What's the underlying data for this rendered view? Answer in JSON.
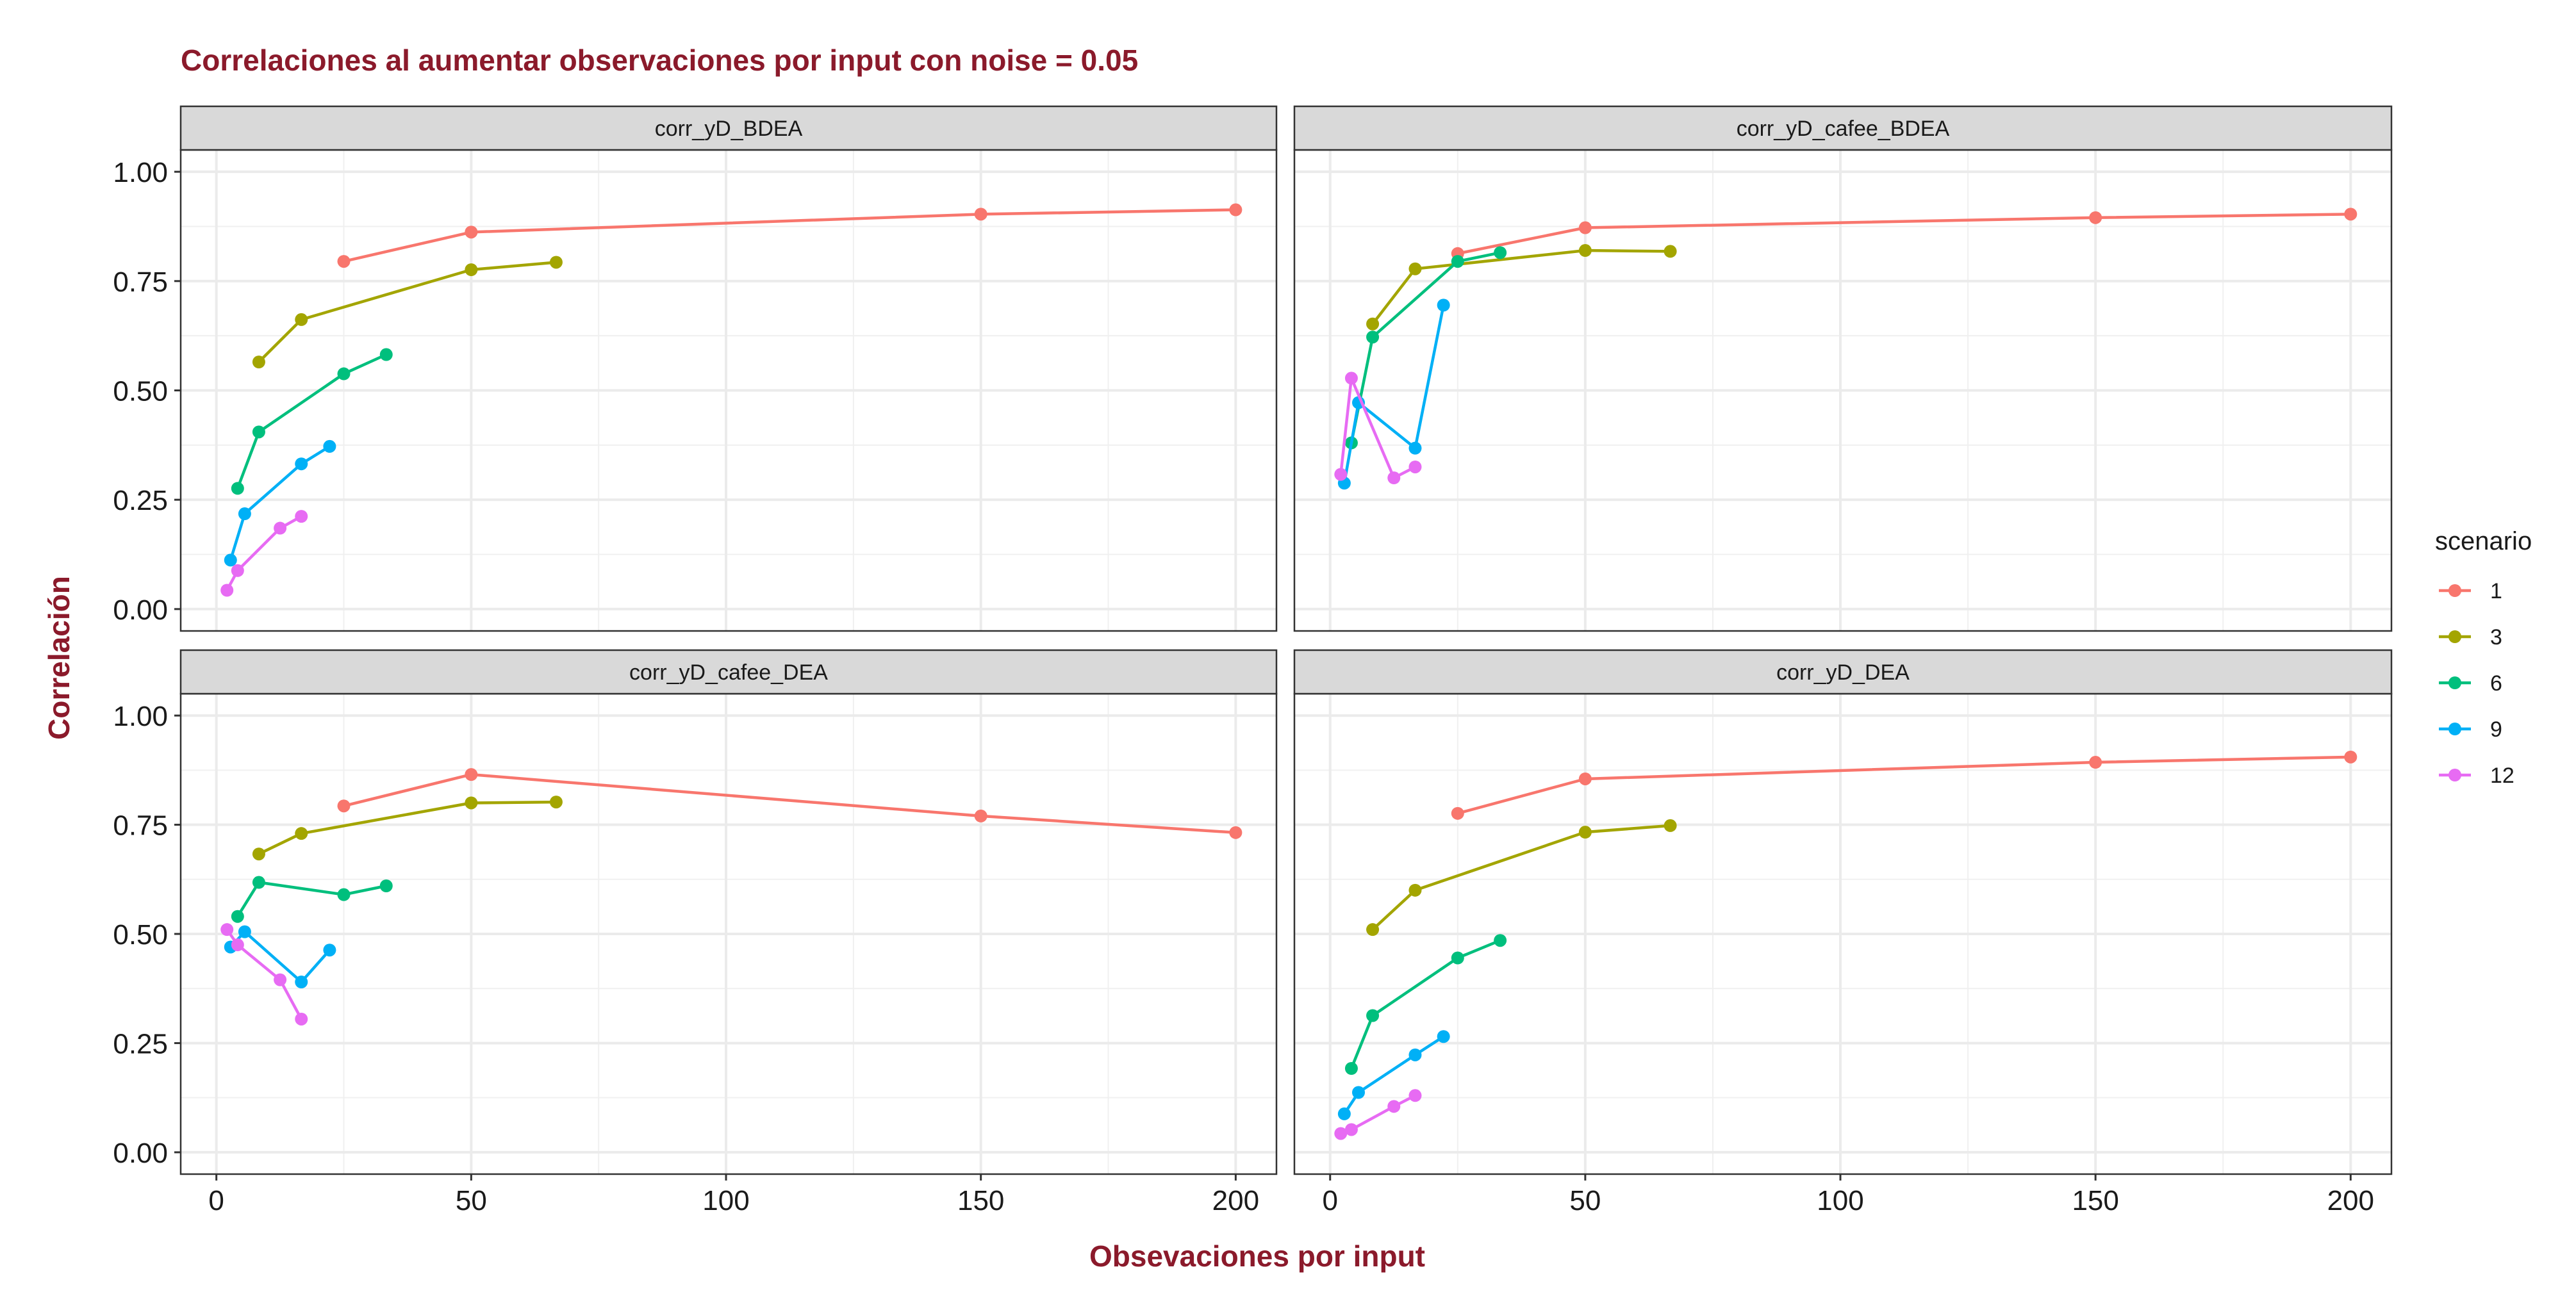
{
  "chart_data": {
    "type": "line",
    "title": "Correlaciones al aumentar observaciones por input con noise = 0.05",
    "xlabel": "Obsevaciones por input",
    "ylabel": "Correlación",
    "xlim": [
      -7,
      208
    ],
    "ylim": [
      -0.05,
      1.05
    ],
    "x_ticks": [
      0,
      50,
      100,
      150,
      200
    ],
    "x_tick_labels": [
      "0",
      "50",
      "100",
      "150",
      "200"
    ],
    "y_ticks": [
      0,
      0.25,
      0.5,
      0.75,
      1.0
    ],
    "y_tick_labels": [
      "0.00",
      "0.25",
      "0.50",
      "0.75",
      "1.00"
    ],
    "grid": true,
    "legend": {
      "title": "scenario",
      "position": "right",
      "entries": [
        {
          "label": "1",
          "color": "#F8766D"
        },
        {
          "label": "3",
          "color": "#A3A500"
        },
        {
          "label": "6",
          "color": "#00BF7D"
        },
        {
          "label": "9",
          "color": "#00B0F6"
        },
        {
          "label": "12",
          "color": "#E76BF3"
        }
      ]
    },
    "panels": [
      {
        "name": "corr_yD_BDEA",
        "series": [
          {
            "name": "1",
            "x": [
              25,
              50,
              150,
              200
            ],
            "y": [
              0.795,
              0.862,
              0.903,
              0.913
            ]
          },
          {
            "name": "3",
            "x": [
              8.33,
              16.67,
              50,
              66.67
            ],
            "y": [
              0.565,
              0.662,
              0.776,
              0.793
            ]
          },
          {
            "name": "6",
            "x": [
              4.17,
              8.33,
              25,
              33.33
            ],
            "y": [
              0.276,
              0.405,
              0.538,
              0.582
            ]
          },
          {
            "name": "9",
            "x": [
              2.78,
              5.56,
              16.67,
              22.22
            ],
            "y": [
              0.112,
              0.218,
              0.332,
              0.372
            ]
          },
          {
            "name": "12",
            "x": [
              2.08,
              4.17,
              12.5,
              16.67
            ],
            "y": [
              0.043,
              0.088,
              0.185,
              0.212
            ]
          }
        ]
      },
      {
        "name": "corr_yD_cafee_BDEA",
        "series": [
          {
            "name": "1",
            "x": [
              25,
              50,
              150,
              200
            ],
            "y": [
              0.813,
              0.872,
              0.895,
              0.903
            ]
          },
          {
            "name": "3",
            "x": [
              8.33,
              16.67,
              50,
              66.67
            ],
            "y": [
              0.652,
              0.778,
              0.82,
              0.818
            ]
          },
          {
            "name": "6",
            "x": [
              4.17,
              8.33,
              25,
              33.33
            ],
            "y": [
              0.38,
              0.622,
              0.795,
              0.815
            ]
          },
          {
            "name": "9",
            "x": [
              2.78,
              5.56,
              16.67,
              22.22
            ],
            "y": [
              0.288,
              0.472,
              0.368,
              0.695
            ]
          },
          {
            "name": "12",
            "x": [
              2.08,
              4.17,
              12.5,
              16.67
            ],
            "y": [
              0.308,
              0.528,
              0.3,
              0.325
            ]
          }
        ]
      },
      {
        "name": "corr_yD_cafee_DEA",
        "series": [
          {
            "name": "1",
            "x": [
              25,
              50,
              150,
              200
            ],
            "y": [
              0.793,
              0.865,
              0.77,
              0.732
            ]
          },
          {
            "name": "3",
            "x": [
              8.33,
              16.67,
              50,
              66.67
            ],
            "y": [
              0.683,
              0.73,
              0.8,
              0.802
            ]
          },
          {
            "name": "6",
            "x": [
              4.17,
              8.33,
              25,
              33.33
            ],
            "y": [
              0.54,
              0.618,
              0.59,
              0.61
            ]
          },
          {
            "name": "9",
            "x": [
              2.78,
              5.56,
              16.67,
              22.22
            ],
            "y": [
              0.47,
              0.505,
              0.39,
              0.463
            ]
          },
          {
            "name": "12",
            "x": [
              2.08,
              4.17,
              12.5,
              16.67
            ],
            "y": [
              0.51,
              0.475,
              0.395,
              0.305
            ]
          }
        ]
      },
      {
        "name": "corr_yD_DEA",
        "series": [
          {
            "name": "1",
            "x": [
              25,
              50,
              150,
              200
            ],
            "y": [
              0.776,
              0.855,
              0.893,
              0.905
            ]
          },
          {
            "name": "3",
            "x": [
              8.33,
              16.67,
              50,
              66.67
            ],
            "y": [
              0.51,
              0.6,
              0.733,
              0.748
            ]
          },
          {
            "name": "6",
            "x": [
              4.17,
              8.33,
              25,
              33.33
            ],
            "y": [
              0.192,
              0.313,
              0.445,
              0.485
            ]
          },
          {
            "name": "9",
            "x": [
              2.78,
              5.56,
              16.67,
              22.22
            ],
            "y": [
              0.088,
              0.137,
              0.223,
              0.265
            ]
          },
          {
            "name": "12",
            "x": [
              2.08,
              4.17,
              12.5,
              16.67
            ],
            "y": [
              0.043,
              0.052,
              0.105,
              0.13
            ]
          }
        ]
      }
    ]
  }
}
